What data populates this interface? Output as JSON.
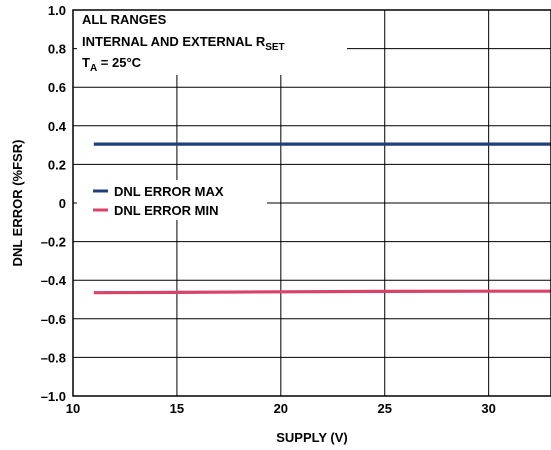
{
  "chart_data": {
    "type": "line",
    "xlabel": "SUPPLY (V)",
    "ylabel": "DNL ERROR (%FSR)",
    "xlim": [
      10,
      33
    ],
    "ylim": [
      -1.0,
      1.0
    ],
    "x_ticks": [
      "10",
      "15",
      "20",
      "25",
      "30"
    ],
    "y_ticks": [
      "1.0",
      "0.8",
      "0.6",
      "0.4",
      "0.2",
      "0",
      "–0.2",
      "–0.4",
      "–0.6",
      "–0.8",
      "–1.0"
    ],
    "grid": true,
    "annotations": {
      "line1": "ALL RANGES",
      "line2_main": "INTERNAL AND EXTERNAL R",
      "line2_sub": "SET",
      "line3_main": "T",
      "line3_sub": "A",
      "line3_rest": " = 25°C"
    },
    "series": [
      {
        "name": "DNL ERROR MAX",
        "color": "#1f3f7a",
        "x": [
          11,
          15,
          20,
          25,
          30,
          33
        ],
        "y": [
          0.305,
          0.305,
          0.305,
          0.305,
          0.305,
          0.305
        ]
      },
      {
        "name": "DNL ERROR MIN",
        "color": "#d9426b",
        "x": [
          11,
          15,
          20,
          25,
          30,
          33
        ],
        "y": [
          -0.465,
          -0.463,
          -0.46,
          -0.458,
          -0.457,
          -0.457
        ]
      }
    ]
  }
}
